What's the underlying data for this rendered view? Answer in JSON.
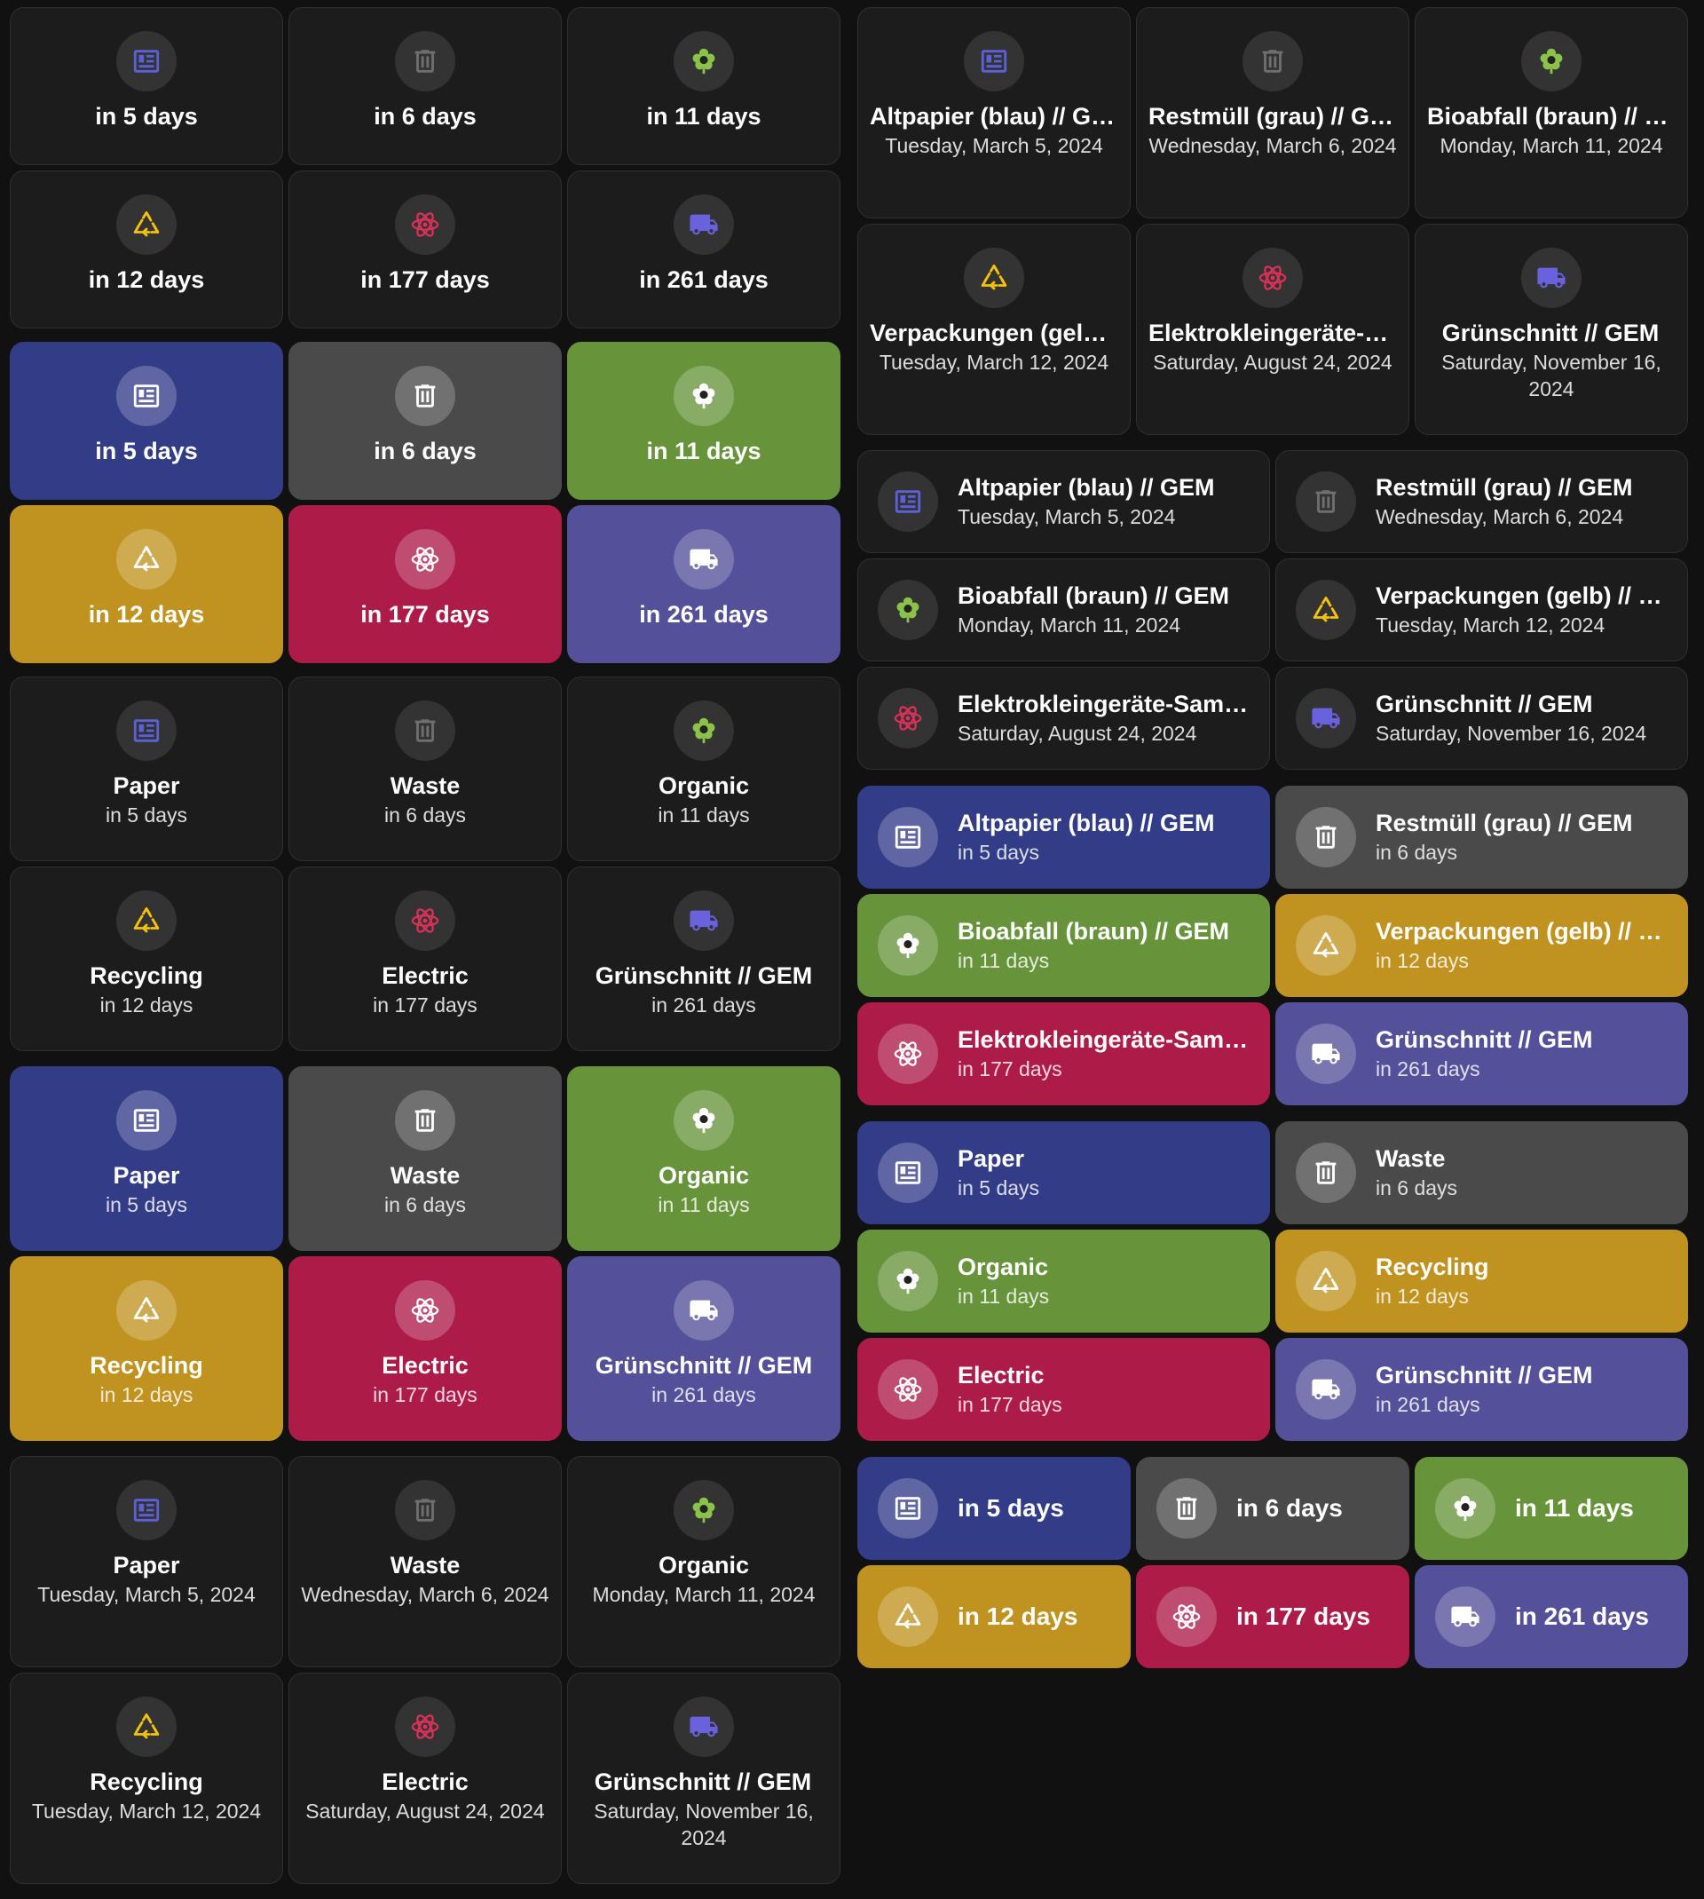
{
  "colors": {
    "paper": "#323c87",
    "waste": "#4a4a4a",
    "organic": "#67943a",
    "recycling": "#c09320",
    "electric": "#ad1c49",
    "green_waste": "#54509a",
    "icon_paper": "#5b62d8",
    "icon_waste": "#6f6f6f",
    "icon_organic": "#8bc34a",
    "icon_recycling": "#f4c20d",
    "icon_electric": "#d93159",
    "icon_green_waste": "#6a62dd"
  },
  "icons": {
    "paper": "newspaper-icon",
    "waste": "trash-can-icon",
    "organic": "flower-icon",
    "recycling": "recycle-icon",
    "electric": "atom-icon",
    "green_waste": "truck-icon"
  },
  "days": {
    "paper": "in 5 days",
    "waste": "in 6 days",
    "organic": "in 11 days",
    "recycling": "in 12 days",
    "electric": "in 177 days",
    "green_waste": "in 261 days"
  },
  "dates": {
    "paper": "Tuesday, March 5, 2024",
    "waste": "Wednesday, March 6, 2024",
    "organic": "Monday, March 11, 2024",
    "recycling": "Tuesday, March 12, 2024",
    "electric": "Saturday, August 24, 2024",
    "green_waste": "Saturday, November 16, 2024"
  },
  "short_names": {
    "paper": "Paper",
    "waste": "Waste",
    "organic": "Organic",
    "recycling": "Recycling",
    "electric": "Electric",
    "green_waste": "Grünschnitt // GEM"
  },
  "full_names": {
    "paper": "Altpapier (blau) // GEM",
    "waste": "Restmüll (grau) // GEM",
    "organic": "Bioabfall (braun) // GEM",
    "recycling": "Verpackungen (gelb) // GEM",
    "electric": "Elektrokleingeräte-Sammlung // GEM",
    "green_waste": "Grünschnitt // GEM"
  }
}
